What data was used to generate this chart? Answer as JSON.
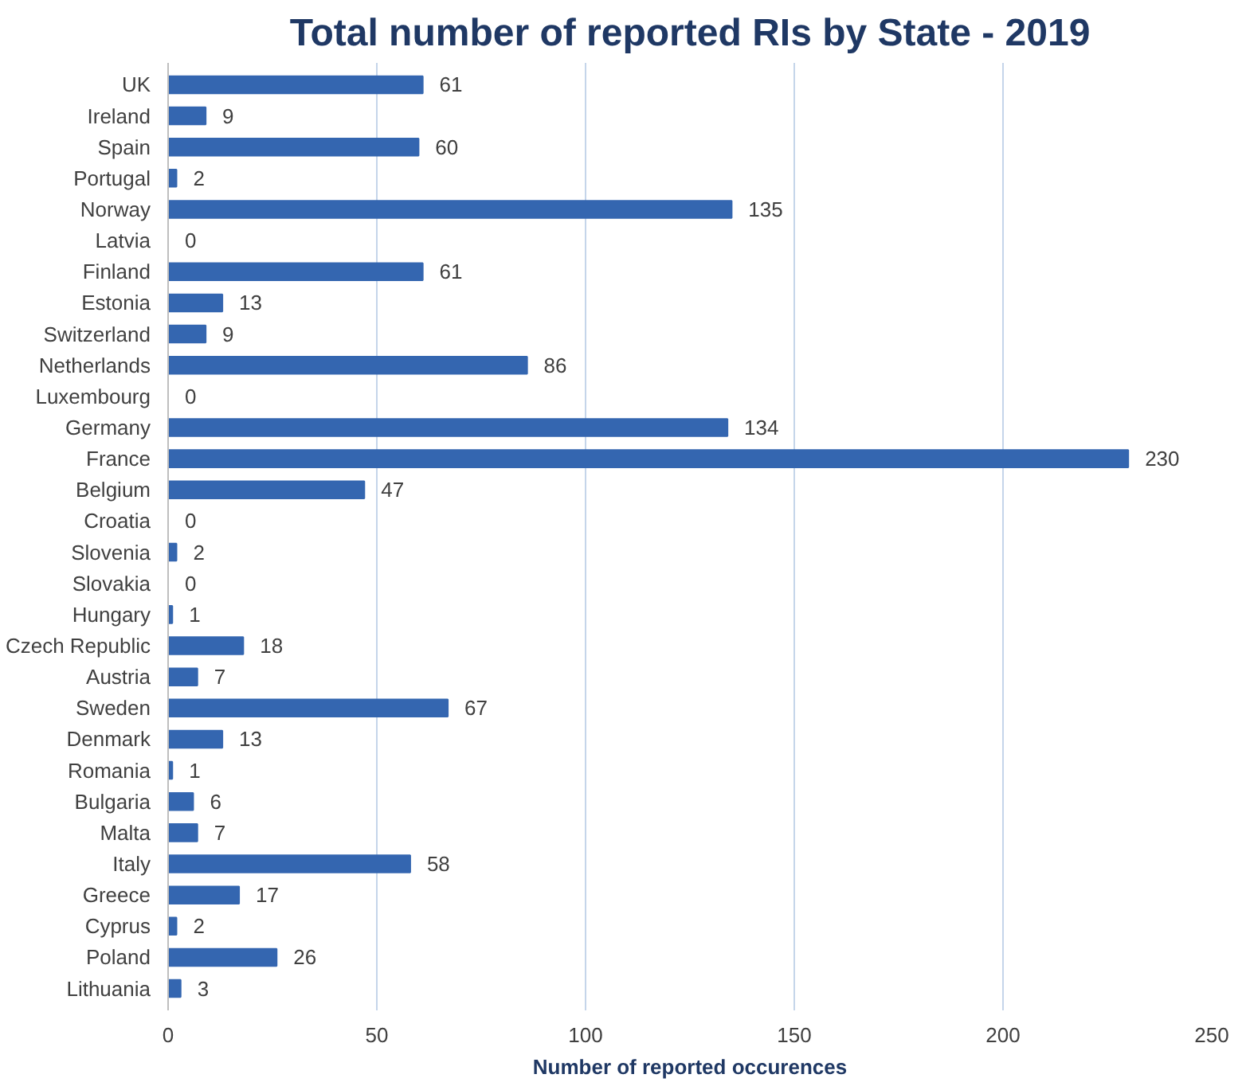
{
  "chart_data": {
    "type": "bar",
    "orientation": "horizontal",
    "title": "Total number of reported RIs by State - 2019",
    "xlabel": "Number of reported occurences",
    "categories": [
      "UK",
      "Ireland",
      "Spain",
      "Portugal",
      "Norway",
      "Latvia",
      "Finland",
      "Estonia",
      "Switzerland",
      "Netherlands",
      "Luxembourg",
      "Germany",
      "France",
      "Belgium",
      "Croatia",
      "Slovenia",
      "Slovakia",
      "Hungary",
      "Czech Republic",
      "Austria",
      "Sweden",
      "Denmark",
      "Romania",
      "Bulgaria",
      "Malta",
      "Italy",
      "Greece",
      "Cyprus",
      "Poland",
      "Lithuania"
    ],
    "values": [
      61,
      9,
      60,
      2,
      135,
      0,
      61,
      13,
      9,
      86,
      0,
      134,
      230,
      47,
      0,
      2,
      0,
      1,
      18,
      7,
      67,
      13,
      1,
      6,
      7,
      58,
      17,
      2,
      26,
      3
    ],
    "color": "#3466b0",
    "xlim": [
      0,
      250
    ],
    "xticks": [
      0,
      50,
      100,
      150,
      200,
      250
    ],
    "grid": "x",
    "data_labels": true
  }
}
